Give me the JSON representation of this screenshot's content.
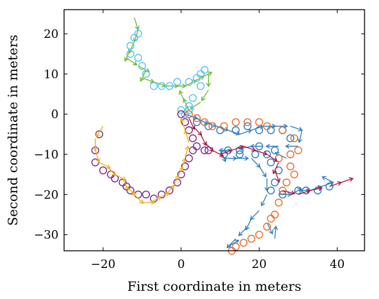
{
  "chart_data": {
    "type": "scatter",
    "title": "",
    "xlabel": "First coordinate in meters",
    "ylabel": "Second coordinate in meters",
    "xlim": [
      -30,
      47
    ],
    "ylim": [
      -34,
      26
    ],
    "xticks": [
      -20,
      0,
      20,
      40
    ],
    "yticks": [
      -30,
      -20,
      -10,
      0,
      10,
      20
    ],
    "xtick_labels": [
      "−20",
      "0",
      "20",
      "40"
    ],
    "ytick_labels": [
      "−30",
      "−20",
      "−10",
      "0",
      "10",
      "20"
    ],
    "grid": false,
    "legend": "none",
    "series": [
      {
        "color": "#6FB733",
        "marker": "arrow",
        "points": [
          [
            -12,
            24
          ],
          [
            -11,
            21
          ],
          [
            -12,
            18
          ],
          [
            -13,
            16
          ],
          [
            -14,
            14
          ],
          [
            -11,
            12
          ],
          [
            -9,
            11
          ],
          [
            -10,
            9
          ],
          [
            -7,
            8
          ],
          [
            -4,
            7
          ],
          [
            -2,
            7
          ],
          [
            1,
            7
          ],
          [
            3,
            8
          ],
          [
            5,
            9
          ],
          [
            7,
            10
          ],
          [
            7,
            6
          ],
          [
            5,
            3
          ],
          [
            2,
            1
          ],
          [
            1,
            3
          ]
        ]
      },
      {
        "color": "#5BC4EC",
        "marker": "circle",
        "points": [
          [
            -11,
            20
          ],
          [
            -12,
            19
          ],
          [
            -13,
            17
          ],
          [
            -13,
            15
          ],
          [
            -11,
            14
          ],
          [
            -10,
            12
          ],
          [
            -9,
            10
          ],
          [
            -7,
            7
          ],
          [
            -5,
            7
          ],
          [
            -3,
            7
          ],
          [
            -1,
            8
          ],
          [
            2,
            8
          ],
          [
            4,
            9
          ],
          [
            5,
            10
          ],
          [
            6,
            11
          ],
          [
            5,
            7
          ],
          [
            3,
            4
          ],
          [
            2,
            2
          ],
          [
            0,
            1
          ],
          [
            1,
            0
          ],
          [
            2,
            1
          ]
        ]
      },
      {
        "color": "#2E7FC0",
        "marker": "arrow",
        "points": [
          [
            1,
            0
          ],
          [
            4,
            -1
          ],
          [
            6,
            -2
          ],
          [
            9,
            -3
          ],
          [
            12,
            -4
          ],
          [
            15,
            -5
          ],
          [
            18,
            -4
          ],
          [
            21,
            -3
          ],
          [
            24,
            -3
          ],
          [
            28,
            -3
          ],
          [
            31,
            -4
          ],
          [
            30,
            -8
          ],
          [
            25,
            -8
          ],
          [
            21,
            -8
          ],
          [
            18,
            -8
          ],
          [
            13,
            -9
          ],
          [
            10,
            -9
          ],
          [
            11,
            -11
          ],
          [
            14,
            -11
          ],
          [
            18,
            -11
          ],
          [
            20,
            -13
          ],
          [
            22,
            -16
          ],
          [
            22,
            -20
          ],
          [
            20,
            -24
          ],
          [
            18,
            -26
          ],
          [
            17,
            -28
          ],
          [
            14,
            -31
          ],
          [
            12,
            -33
          ],
          [
            22,
            -27
          ],
          [
            24,
            -31
          ],
          [
            25,
            -20
          ],
          [
            28,
            -20
          ],
          [
            30,
            -19
          ],
          [
            33,
            -19
          ],
          [
            36,
            -18
          ],
          [
            39,
            -17
          ],
          [
            27,
            -11
          ]
        ]
      },
      {
        "color": "#2E7FC0",
        "marker": "circle",
        "points": [
          [
            4,
            -2
          ],
          [
            7,
            -3
          ],
          [
            10,
            -4
          ],
          [
            14,
            -4
          ],
          [
            17,
            -3
          ],
          [
            20,
            -4
          ],
          [
            23,
            -4
          ],
          [
            26,
            -4
          ],
          [
            28,
            -6
          ],
          [
            24,
            -9
          ],
          [
            20,
            -8
          ],
          [
            15,
            -9
          ],
          [
            12,
            -9
          ],
          [
            11,
            -10
          ],
          [
            15,
            -10
          ],
          [
            19,
            -10
          ],
          [
            22,
            -10
          ],
          [
            23,
            -12
          ],
          [
            25,
            -14
          ],
          [
            24,
            -17
          ],
          [
            23,
            -19
          ],
          [
            26,
            -20
          ],
          [
            30,
            -19
          ],
          [
            32,
            -19
          ],
          [
            35,
            -19
          ],
          [
            38,
            -18
          ]
        ]
      },
      {
        "color": "#E86F2F",
        "marker": "circle",
        "points": [
          [
            2,
            0
          ],
          [
            4,
            -1
          ],
          [
            6,
            -2
          ],
          [
            8,
            -3
          ],
          [
            11,
            -3
          ],
          [
            14,
            -2
          ],
          [
            17,
            -2
          ],
          [
            20,
            -2
          ],
          [
            22,
            -3
          ],
          [
            26,
            -4
          ],
          [
            29,
            -6
          ],
          [
            30,
            -9
          ],
          [
            28,
            -10
          ],
          [
            25,
            -11
          ],
          [
            28,
            -13
          ],
          [
            29,
            -15
          ],
          [
            27,
            -17
          ],
          [
            26,
            -19
          ],
          [
            25,
            -22
          ],
          [
            24,
            -25
          ],
          [
            23,
            -26
          ],
          [
            22,
            -28
          ],
          [
            20,
            -30
          ],
          [
            18,
            -31
          ],
          [
            16,
            -32
          ],
          [
            14,
            -33
          ],
          [
            13,
            -34
          ]
        ]
      },
      {
        "color": "#B3163A",
        "marker": "arrow",
        "points": [
          [
            2,
            -1
          ],
          [
            3,
            -3
          ],
          [
            5,
            -5
          ],
          [
            6,
            -7
          ],
          [
            8,
            -9
          ],
          [
            10,
            -10
          ],
          [
            13,
            -9
          ],
          [
            16,
            -8
          ],
          [
            19,
            -9
          ],
          [
            22,
            -10
          ],
          [
            25,
            -12
          ],
          [
            24,
            -14
          ],
          [
            26,
            -19
          ],
          [
            30,
            -20
          ],
          [
            33,
            -19
          ],
          [
            38,
            -18
          ],
          [
            41,
            -17
          ]
        ]
      },
      {
        "color": "#7B2D8F",
        "marker": "circle",
        "points": [
          [
            0,
            0
          ],
          [
            1,
            -2
          ],
          [
            2,
            -4
          ],
          [
            3,
            -6
          ],
          [
            4,
            -8
          ],
          [
            6,
            -9
          ],
          [
            7,
            -9
          ],
          [
            -21,
            -5
          ],
          [
            -22,
            -9
          ],
          [
            -22,
            -12
          ],
          [
            -20,
            -14
          ],
          [
            -18,
            -15
          ],
          [
            -17,
            -16
          ],
          [
            -15,
            -17
          ],
          [
            -14,
            -18
          ],
          [
            -13,
            -19
          ],
          [
            -11,
            -20
          ],
          [
            -9,
            -20
          ],
          [
            -7,
            -21
          ],
          [
            -5,
            -20
          ],
          [
            -3,
            -19
          ],
          [
            -1,
            -17
          ],
          [
            0,
            -15
          ],
          [
            1,
            -13
          ],
          [
            2,
            -11
          ],
          [
            3,
            -9
          ]
        ]
      },
      {
        "color": "#EDB021",
        "marker": "arrow",
        "points": [
          [
            -20,
            -3
          ],
          [
            -22,
            -6
          ],
          [
            -22,
            -9
          ],
          [
            -21,
            -12
          ],
          [
            -19,
            -13
          ],
          [
            -17,
            -15
          ],
          [
            -15,
            -16
          ],
          [
            -14,
            -18
          ],
          [
            -12,
            -20
          ],
          [
            -10,
            -22
          ],
          [
            -8,
            -22
          ],
          [
            -6,
            -21
          ],
          [
            -4,
            -20
          ],
          [
            -2,
            -18
          ],
          [
            -1,
            -16
          ],
          [
            0,
            -14
          ],
          [
            1,
            -11
          ],
          [
            2,
            -7
          ],
          [
            1,
            -4
          ]
        ]
      }
    ]
  }
}
